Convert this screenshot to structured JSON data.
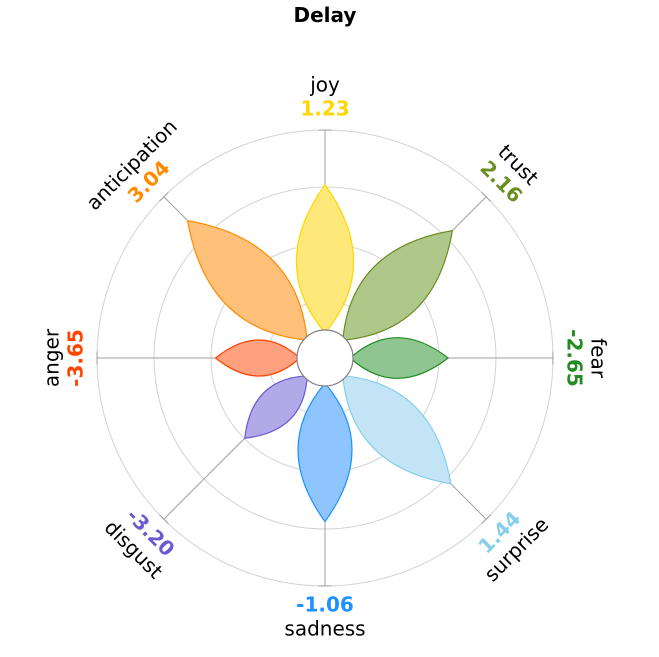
{
  "chart_data": {
    "type": "radial-petal",
    "title": "Delay",
    "grid": true,
    "max_value": 4,
    "ring_values": [
      1,
      2,
      3,
      4
    ],
    "series": [
      {
        "name": "joy",
        "value": 1.23,
        "value_label": "1.23",
        "petal_length": 3.04,
        "color": "#ffd700",
        "fill": "#ffe87a"
      },
      {
        "name": "trust",
        "value": 2.16,
        "value_label": "2.16",
        "petal_length": 3.16,
        "color": "#6b8e23",
        "fill": "#b0c78a"
      },
      {
        "name": "fear",
        "value": -2.65,
        "value_label": "-2.65",
        "petal_length": 2.16,
        "color": "#228b22",
        "fill": "#8fc68f"
      },
      {
        "name": "surprise",
        "value": 1.44,
        "value_label": "1.44",
        "petal_length": 3.12,
        "color": "#87ceeb",
        "fill": "#c2e4f4"
      },
      {
        "name": "sadness",
        "value": -1.06,
        "value_label": "-1.06",
        "petal_length": 2.87,
        "color": "#1e90ff",
        "fill": "#8ec5ff"
      },
      {
        "name": "disgust",
        "value": -3.2,
        "value_label": "-3.20",
        "petal_length": 1.99,
        "color": "#6a5acd",
        "fill": "#b1a9e8"
      },
      {
        "name": "anger",
        "value": -3.65,
        "value_label": "-3.65",
        "petal_length": 1.92,
        "color": "#ff4500",
        "fill": "#ffa07f"
      },
      {
        "name": "anticipation",
        "value": 3.04,
        "value_label": "3.04",
        "petal_length": 3.41,
        "color": "#ff8c00",
        "fill": "#ffc07a"
      }
    ]
  }
}
